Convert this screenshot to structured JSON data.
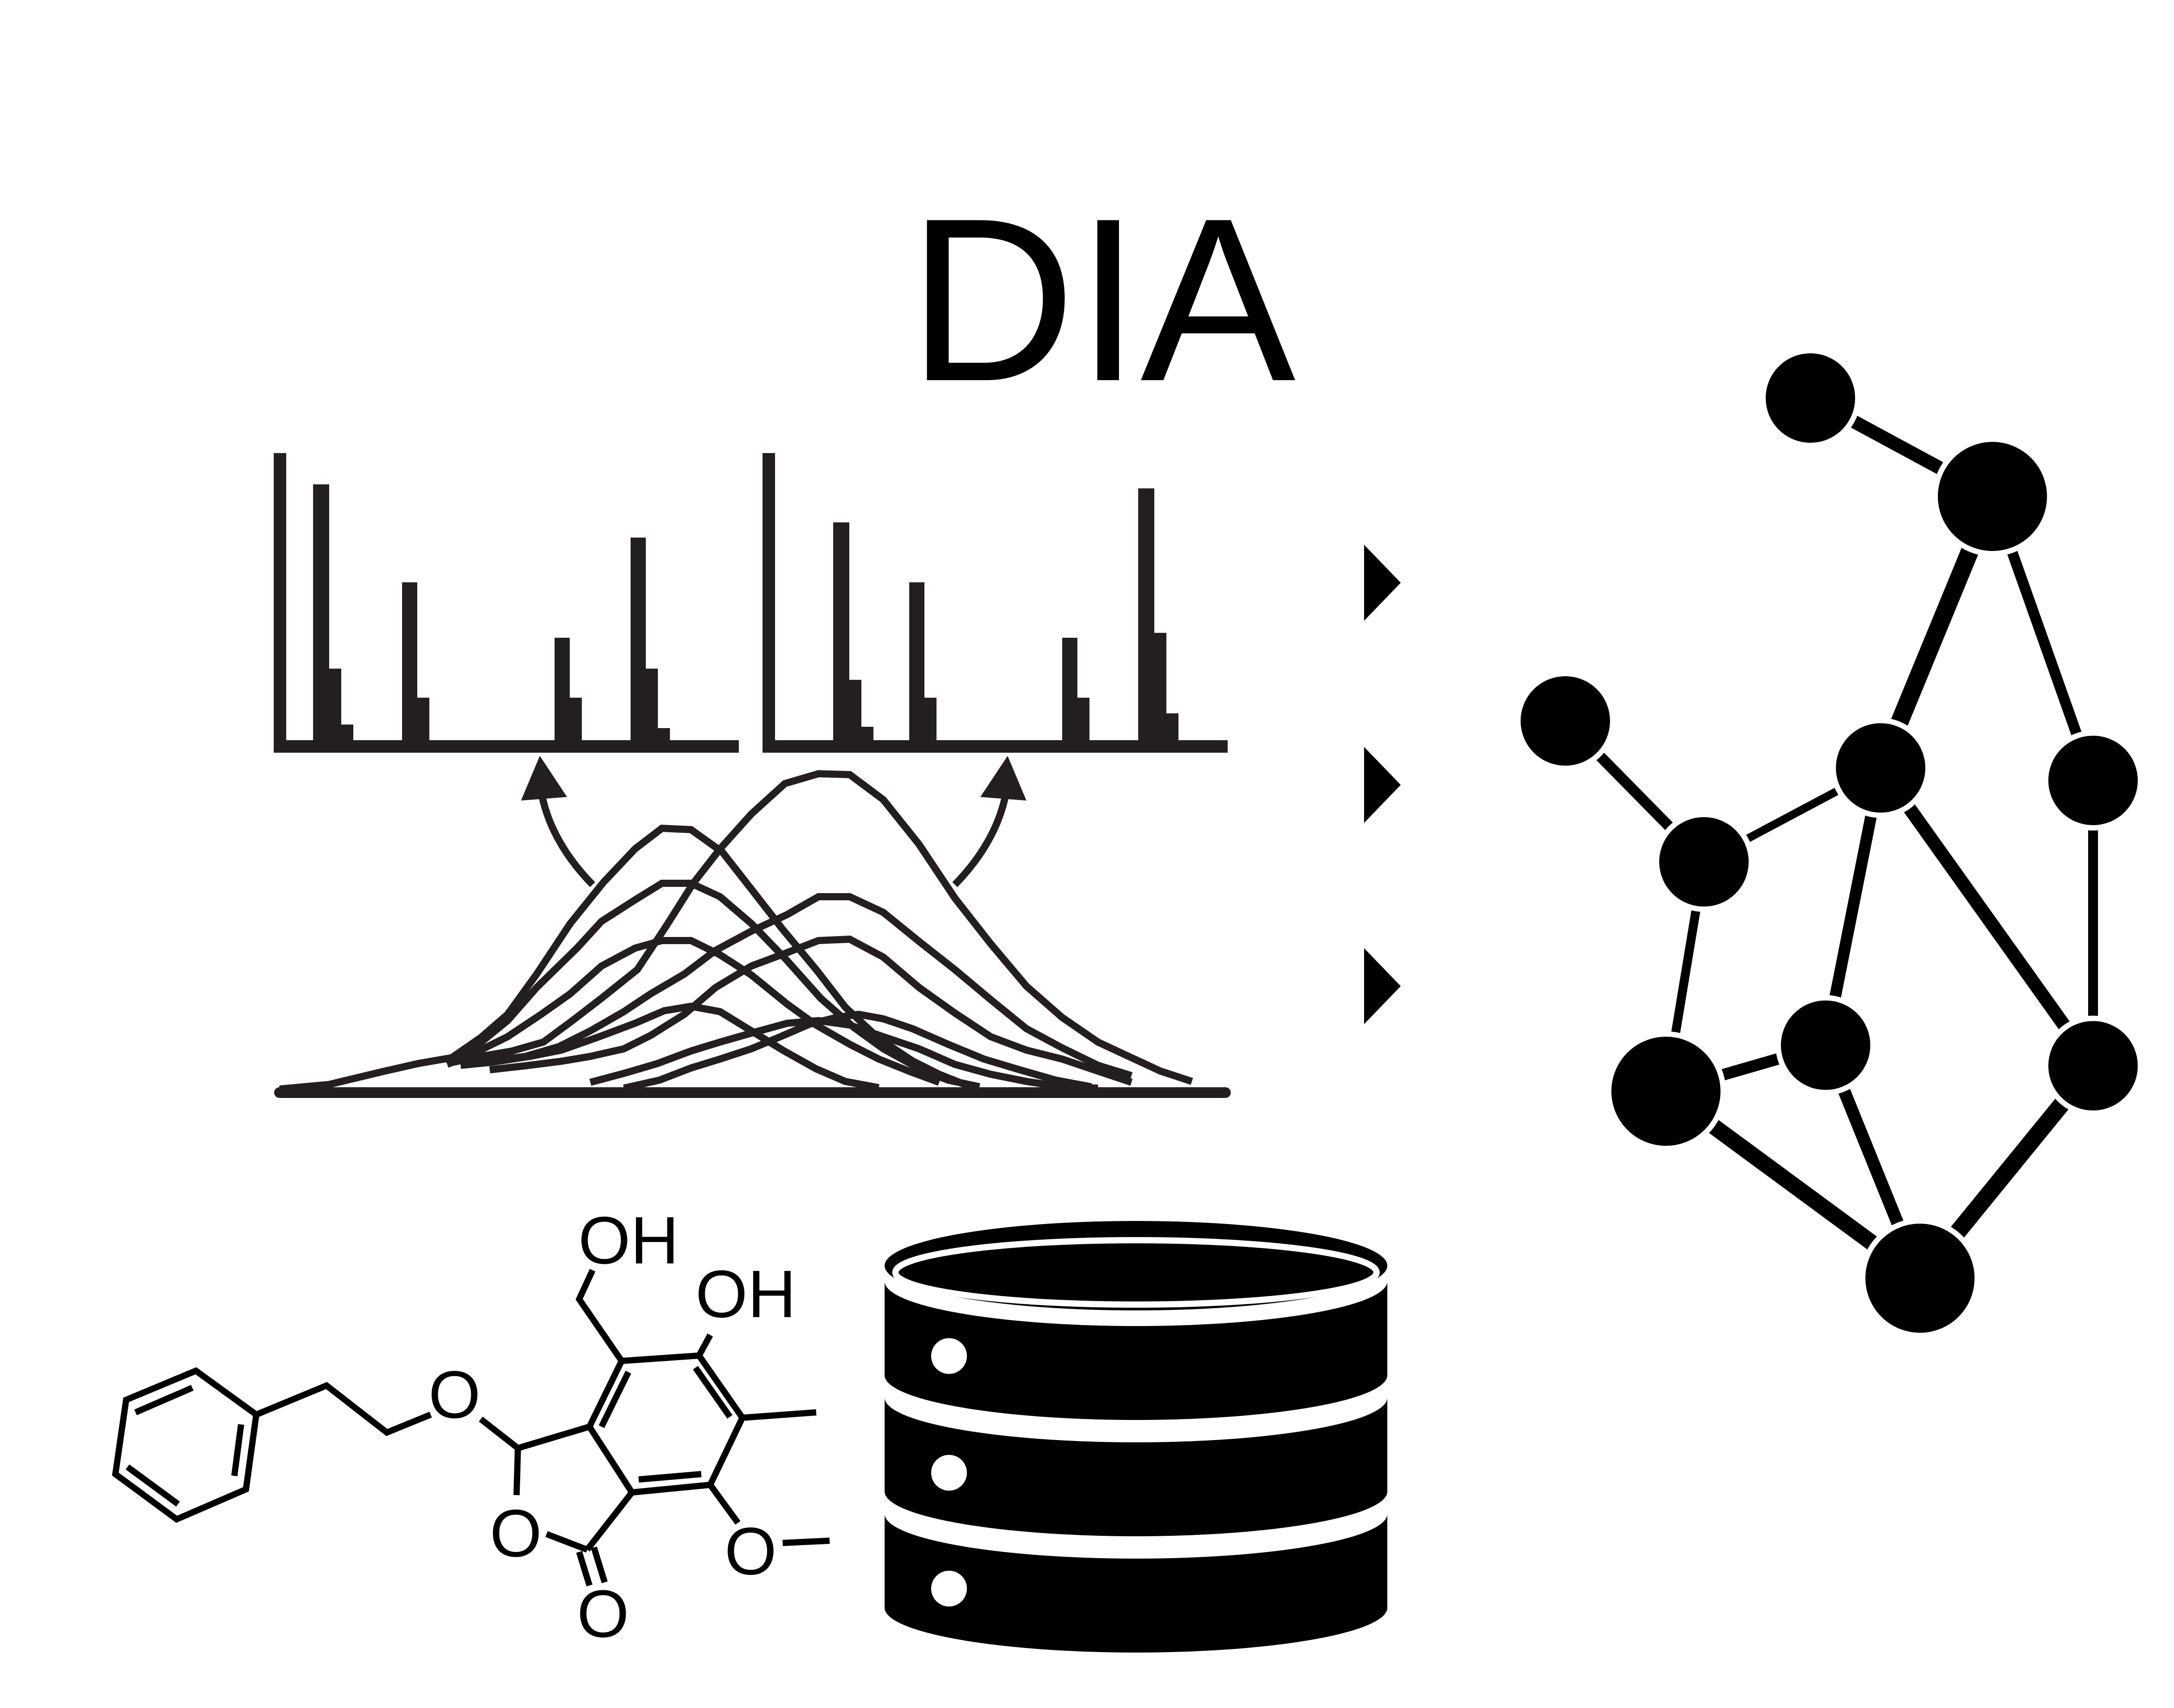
{
  "title": "DIA",
  "molecule": {
    "atoms": [
      "OH",
      "OH",
      "O",
      "O",
      "O",
      "O"
    ]
  },
  "colors": {
    "ink": "#000000",
    "spectrum_ink": "#231f20",
    "background": "#ffffff"
  },
  "icons": [
    "mass-spectrum-icon",
    "chromatogram-icon",
    "database-icon",
    "molecule-icon",
    "network-graph-icon",
    "arrow-right-icon"
  ]
}
